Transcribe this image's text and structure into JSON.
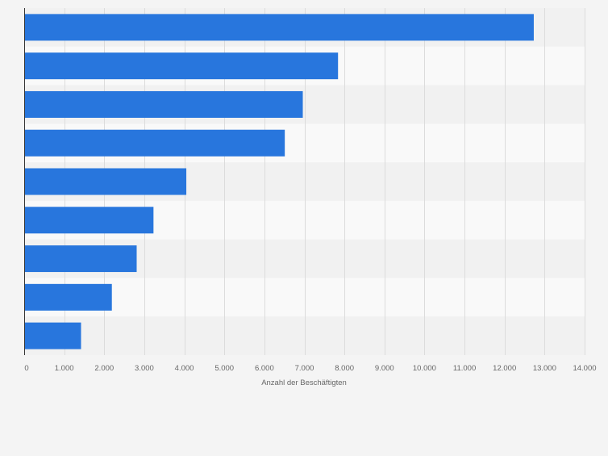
{
  "chart_data": {
    "type": "bar",
    "orientation": "horizontal",
    "categories": [
      "",
      "",
      "",
      "",
      "",
      "",
      "",
      "",
      ""
    ],
    "values": [
      12730,
      7840,
      6960,
      6510,
      4050,
      3230,
      2810,
      2190,
      1420
    ],
    "xlabel": "Anzahl der Beschäftigten",
    "ylabel": "",
    "xlim": [
      0,
      14000
    ],
    "ticks": [
      0,
      1000,
      2000,
      3000,
      4000,
      5000,
      6000,
      7000,
      8000,
      9000,
      10000,
      11000,
      12000,
      13000,
      14000
    ],
    "tick_labels": [
      "0",
      "1.000",
      "2.000",
      "3.000",
      "4.000",
      "5.000",
      "6.000",
      "7.000",
      "8.000",
      "9.000",
      "10.000",
      "11.000",
      "12.000",
      "13.000",
      "14.000"
    ],
    "grid": true,
    "colors": {
      "bar": "#2876dd",
      "grid": "#dcdcdc",
      "axis": "#333333",
      "band_dark": "#f1f1f1",
      "band_light": "#f9f9f9",
      "tick_text": "#666666"
    }
  }
}
